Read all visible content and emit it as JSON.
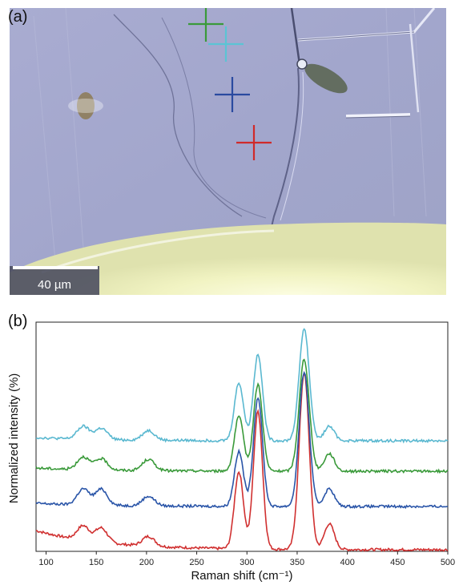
{
  "panels": {
    "a_label": "(a)",
    "b_label": "(b)"
  },
  "micrograph": {
    "scale_bar_label": "40 µm",
    "markers": [
      {
        "color": "#3a9a3a"
      },
      {
        "color": "#5bc4d4"
      },
      {
        "color": "#2a4aa0"
      },
      {
        "color": "#d02a2a"
      }
    ]
  },
  "chart_data": {
    "type": "line",
    "xlabel": "Raman shift (cm⁻¹)",
    "ylabel": "Normalized intensity (%)",
    "xlim": [
      90,
      500
    ],
    "x_ticks": [
      100,
      150,
      200,
      250,
      300,
      350,
      400,
      450,
      500
    ],
    "y_ticks_shown": false,
    "peaks": [
      {
        "x": 137,
        "w": 6
      },
      {
        "x": 155,
        "w": 6
      },
      {
        "x": 202,
        "w": 6
      },
      {
        "x": 292,
        "w": 4.5
      },
      {
        "x": 311,
        "w": 4.5
      },
      {
        "x": 357,
        "w": 5
      },
      {
        "x": 382,
        "w": 5
      }
    ],
    "series": [
      {
        "color": "#d03030",
        "baseline": 0.0,
        "background": [
          0.06,
          0.0
        ],
        "heights": [
          0.045,
          0.045,
          0.03,
          0.24,
          0.43,
          0.55,
          0.08
        ]
      },
      {
        "color": "#2a55a8",
        "baseline": 0.135,
        "background": [
          0.01,
          0.0
        ],
        "heights": [
          0.05,
          0.05,
          0.03,
          0.17,
          0.34,
          0.42,
          0.055
        ]
      },
      {
        "color": "#3a9a3a",
        "baseline": 0.245,
        "background": [
          0.01,
          0.0
        ],
        "heights": [
          0.04,
          0.035,
          0.035,
          0.17,
          0.27,
          0.35,
          0.055
        ]
      },
      {
        "color": "#5ab8d0",
        "baseline": 0.34,
        "background": [
          0.01,
          0.0
        ],
        "heights": [
          0.04,
          0.035,
          0.03,
          0.18,
          0.27,
          0.35,
          0.045
        ]
      }
    ]
  }
}
